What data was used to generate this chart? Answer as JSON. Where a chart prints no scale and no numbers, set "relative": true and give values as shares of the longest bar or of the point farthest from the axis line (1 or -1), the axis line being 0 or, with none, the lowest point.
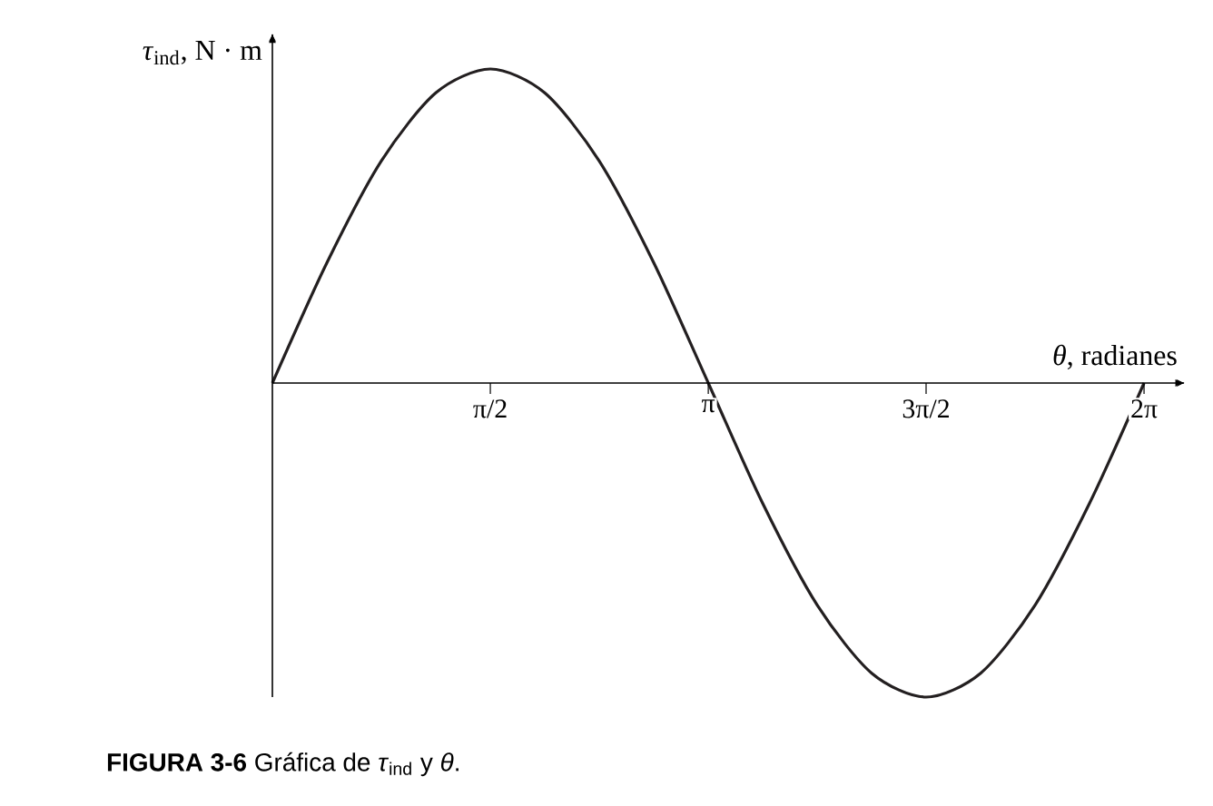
{
  "chart_data": {
    "type": "line",
    "relative": true,
    "xlabel": "*θ*, radianes",
    "ylabel": "*τ*$_{ind}$, N · m",
    "x": [
      0,
      0.393,
      0.785,
      1.178,
      1.571,
      1.963,
      2.356,
      2.749,
      3.142,
      3.534,
      3.927,
      4.32,
      4.712,
      5.105,
      5.498,
      5.89,
      6.283
    ],
    "series": [
      {
        "color": "#231f20",
        "values": [
          0,
          0.383,
          0.707,
          0.924,
          1,
          0.924,
          0.707,
          0.383,
          0,
          -0.383,
          -0.707,
          -0.924,
          -1,
          -0.924,
          -0.707,
          -0.383,
          0
        ]
      }
    ],
    "xlim": [
      0,
      6.57
    ],
    "xticks": [
      {
        "value": 1.571,
        "label": "π/2"
      },
      {
        "value": 3.142,
        "label": "π"
      },
      {
        "value": 4.712,
        "label": "3π/2"
      },
      {
        "value": 6.283,
        "label": "2π"
      }
    ],
    "marker": "none",
    "line_style": "solid",
    "grid": false,
    "annotations": [
      "**FIGURA 3-6**  Gráfica de *τ*$_{ind}$ y *θ*."
    ]
  }
}
